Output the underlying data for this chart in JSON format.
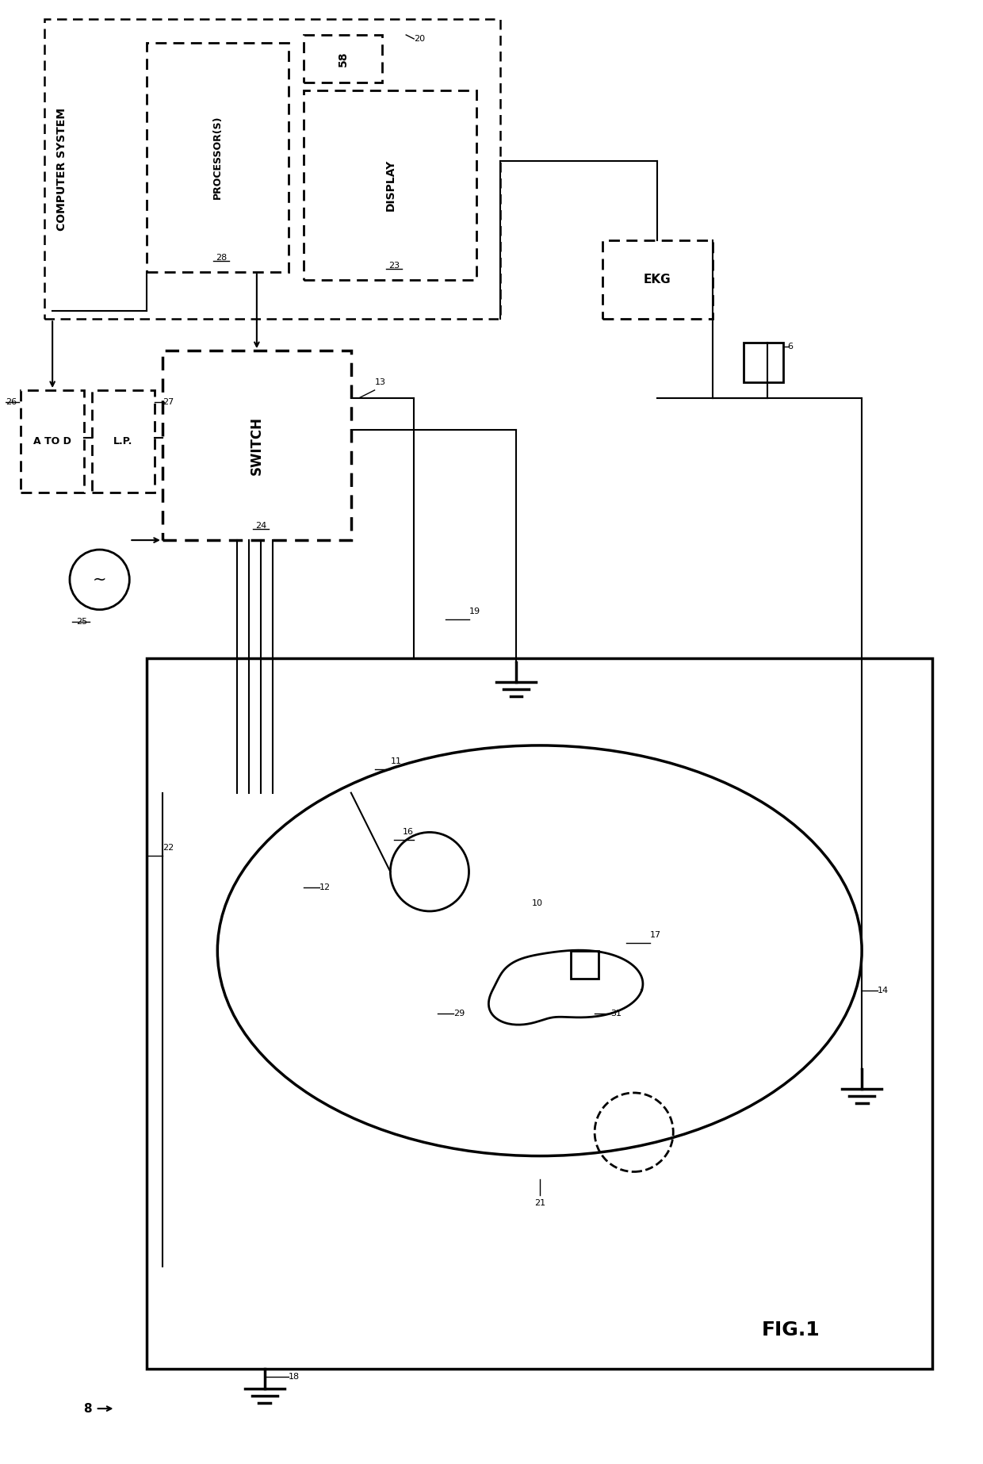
{
  "bg_color": "#ffffff",
  "fig_width": 12.4,
  "fig_height": 18.46,
  "computer_system_label": "COMPUTER SYSTEM",
  "processor_label": "PROCESSOR(S)",
  "processor_num": "28",
  "display_label": "DISPLAY",
  "display_num": "23",
  "memory_num": "58",
  "cs_num": "20",
  "switch_label": "SWITCH",
  "switch_num": "24",
  "lp_label": "L.P.",
  "lp_num": "27",
  "atod_label": "A TO D",
  "atod_num": "26",
  "oscillator_num": "25",
  "ekg_label": "EKG",
  "ekg_num": "6",
  "tank_num": "8",
  "fig1_label": "FIG.1",
  "num_13": "13",
  "num_11": "11",
  "num_12": "12",
  "num_14": "14",
  "num_16": "16",
  "num_17": "17",
  "num_18": "18",
  "num_19": "19",
  "num_21": "21",
  "num_22": "22",
  "num_29": "29",
  "num_31": "31",
  "num_10": "10"
}
